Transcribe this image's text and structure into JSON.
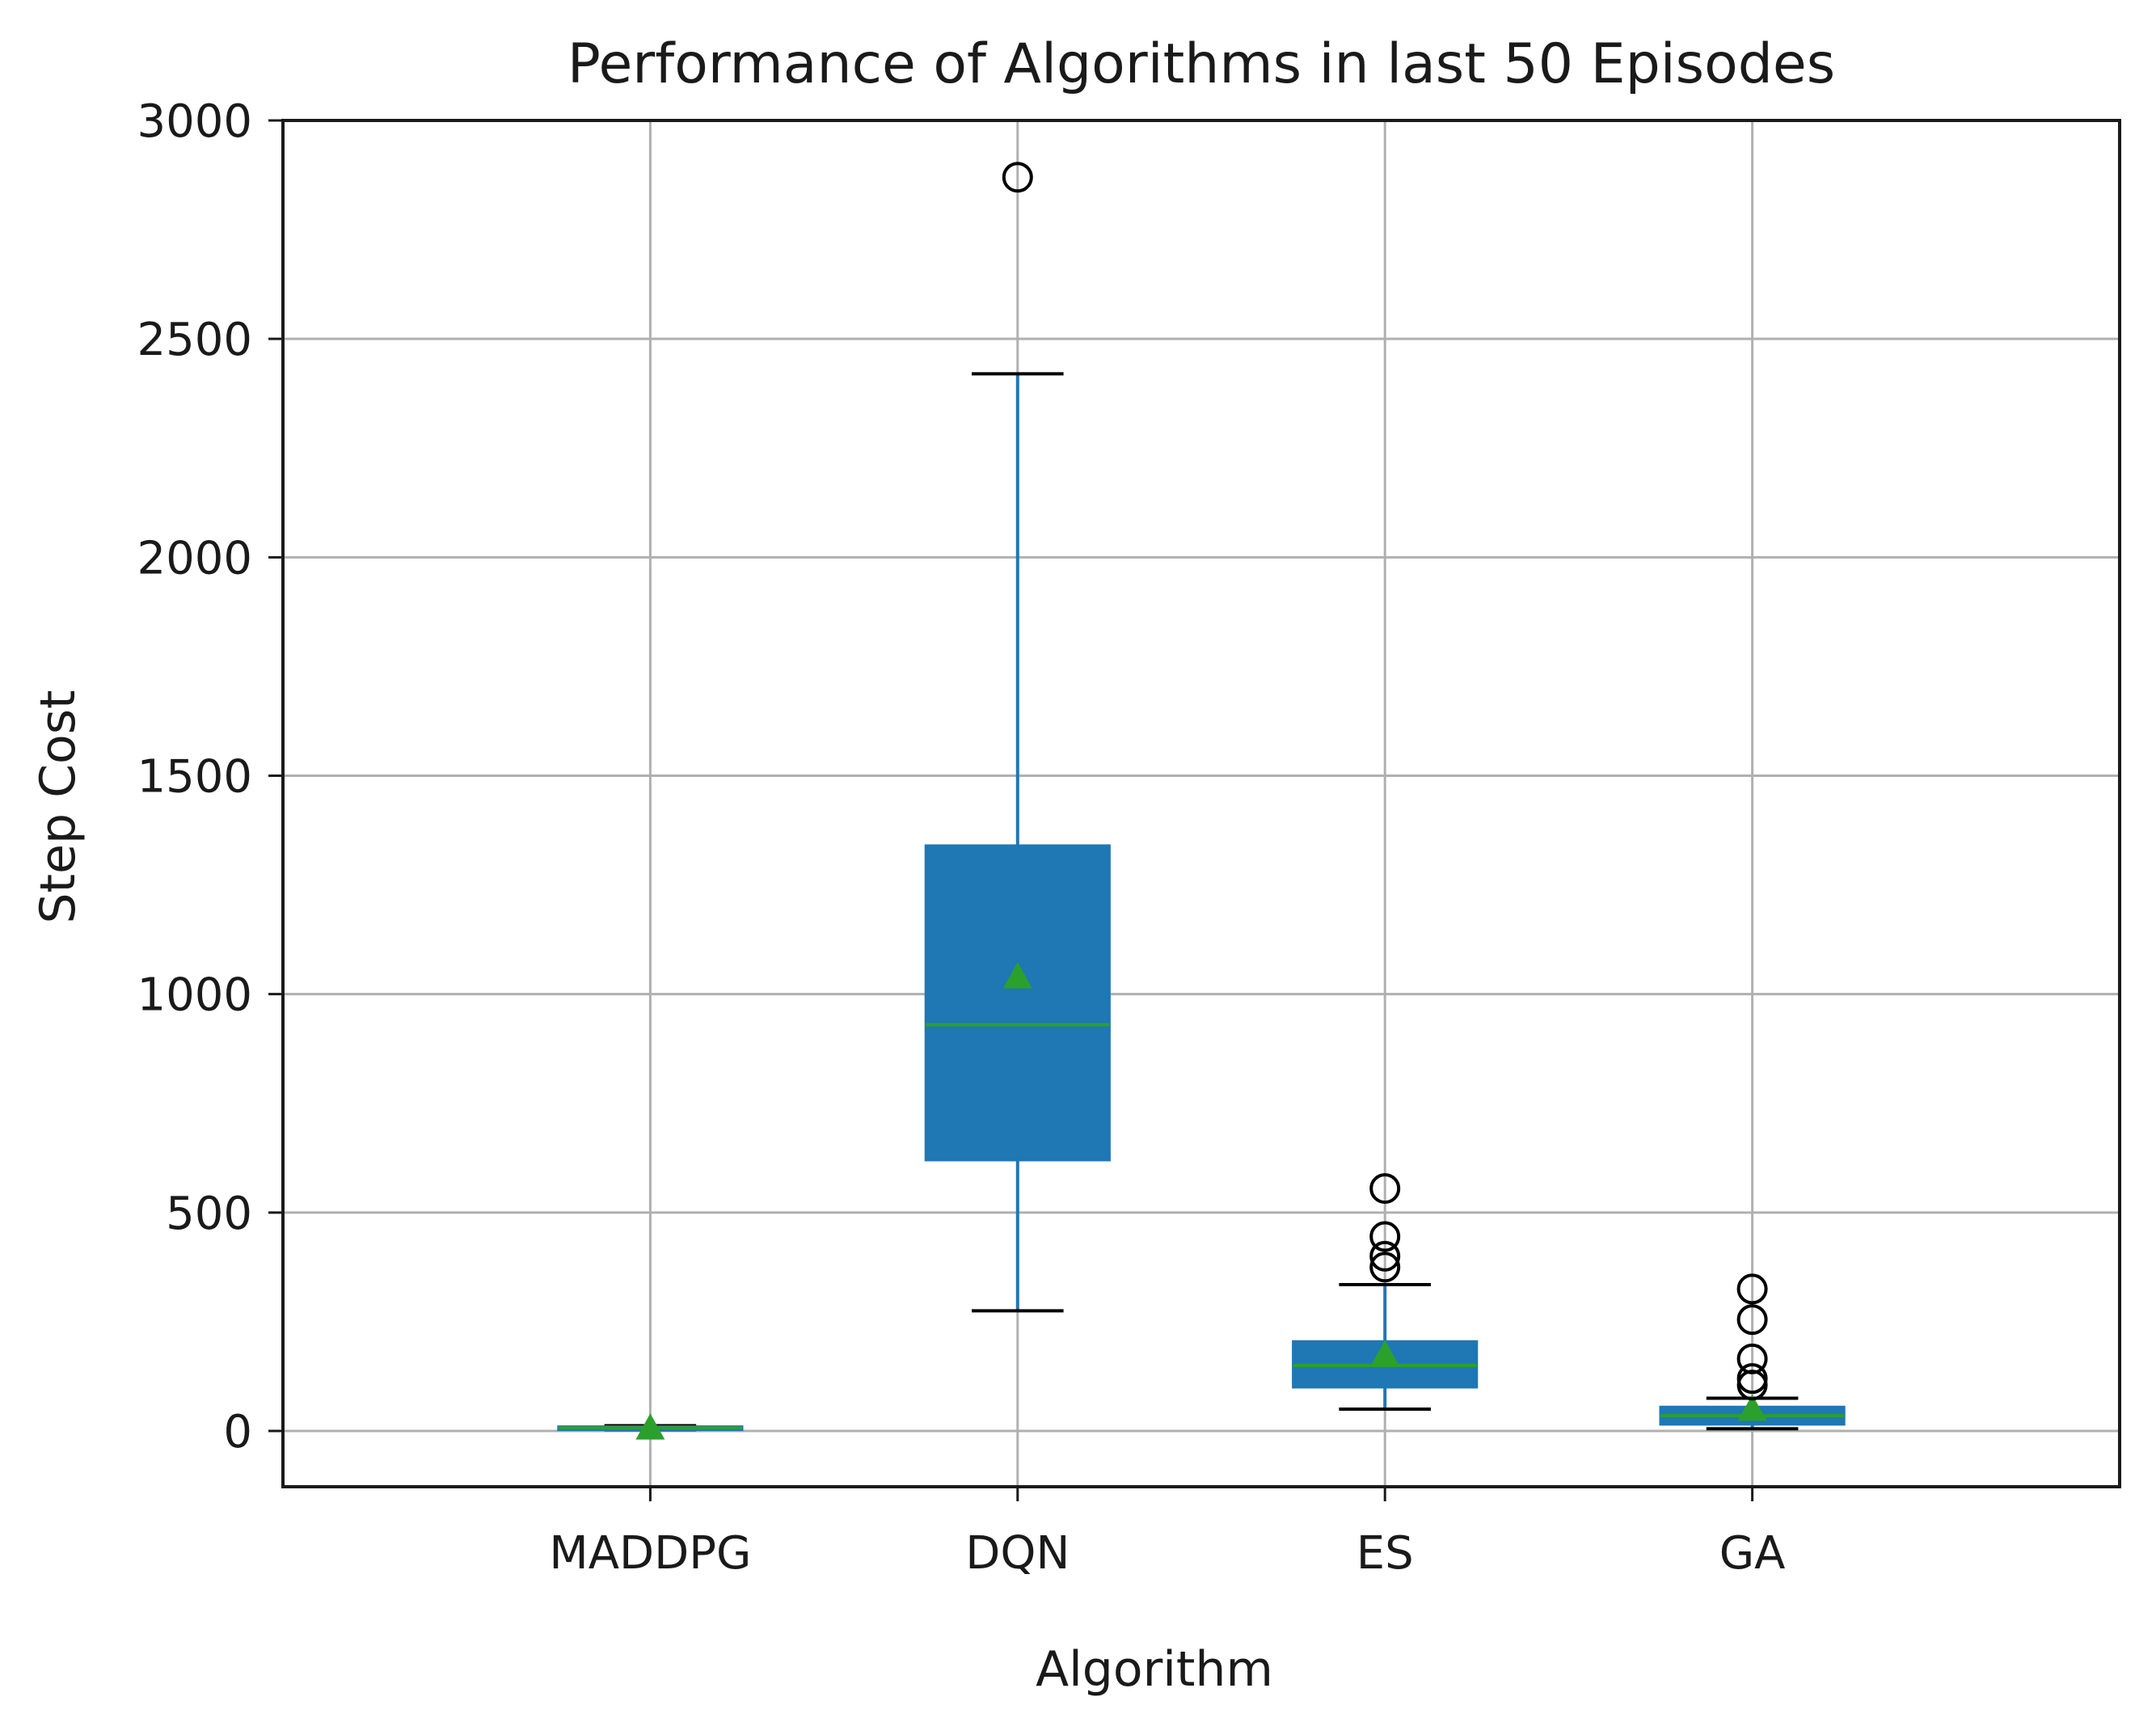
{
  "chart_data": {
    "type": "box",
    "title": "Performance of Algorithms in last 50 Episodes",
    "xlabel": "Algorithm",
    "ylabel": "Step Cost",
    "ylim": [
      -130,
      3000
    ],
    "yticks": [
      0,
      500,
      1000,
      1500,
      2000,
      2500,
      3000
    ],
    "grid": true,
    "legend": "none",
    "colors": {
      "box_fill": "#1f77b4",
      "median": "#2ca02c",
      "mean_marker": "#2ca02c",
      "whisker": "#1f77b4",
      "cap": "#000000",
      "outlier": "#000000",
      "grid": "#b0b0b0"
    },
    "categories": [
      "MADDPG",
      "DQN",
      "ES",
      "GA"
    ],
    "boxes": [
      {
        "name": "MADDPG",
        "whislo": 3,
        "q1": 4,
        "median": 7,
        "q3": 10,
        "whishi": 12,
        "mean": 7,
        "fliers": []
      },
      {
        "name": "DQN",
        "whislo": 275,
        "q1": 620,
        "median": 930,
        "q3": 1340,
        "whishi": 2420,
        "mean": 1040,
        "fliers": [
          2870
        ]
      },
      {
        "name": "ES",
        "whislo": 50,
        "q1": 100,
        "median": 150,
        "q3": 205,
        "whishi": 335,
        "mean": 175,
        "fliers": [
          375,
          400,
          445,
          555
        ]
      },
      {
        "name": "GA",
        "whislo": 5,
        "q1": 15,
        "median": 35,
        "q3": 55,
        "whishi": 75,
        "mean": 50,
        "fliers": [
          105,
          120,
          165,
          255,
          325
        ]
      }
    ]
  }
}
